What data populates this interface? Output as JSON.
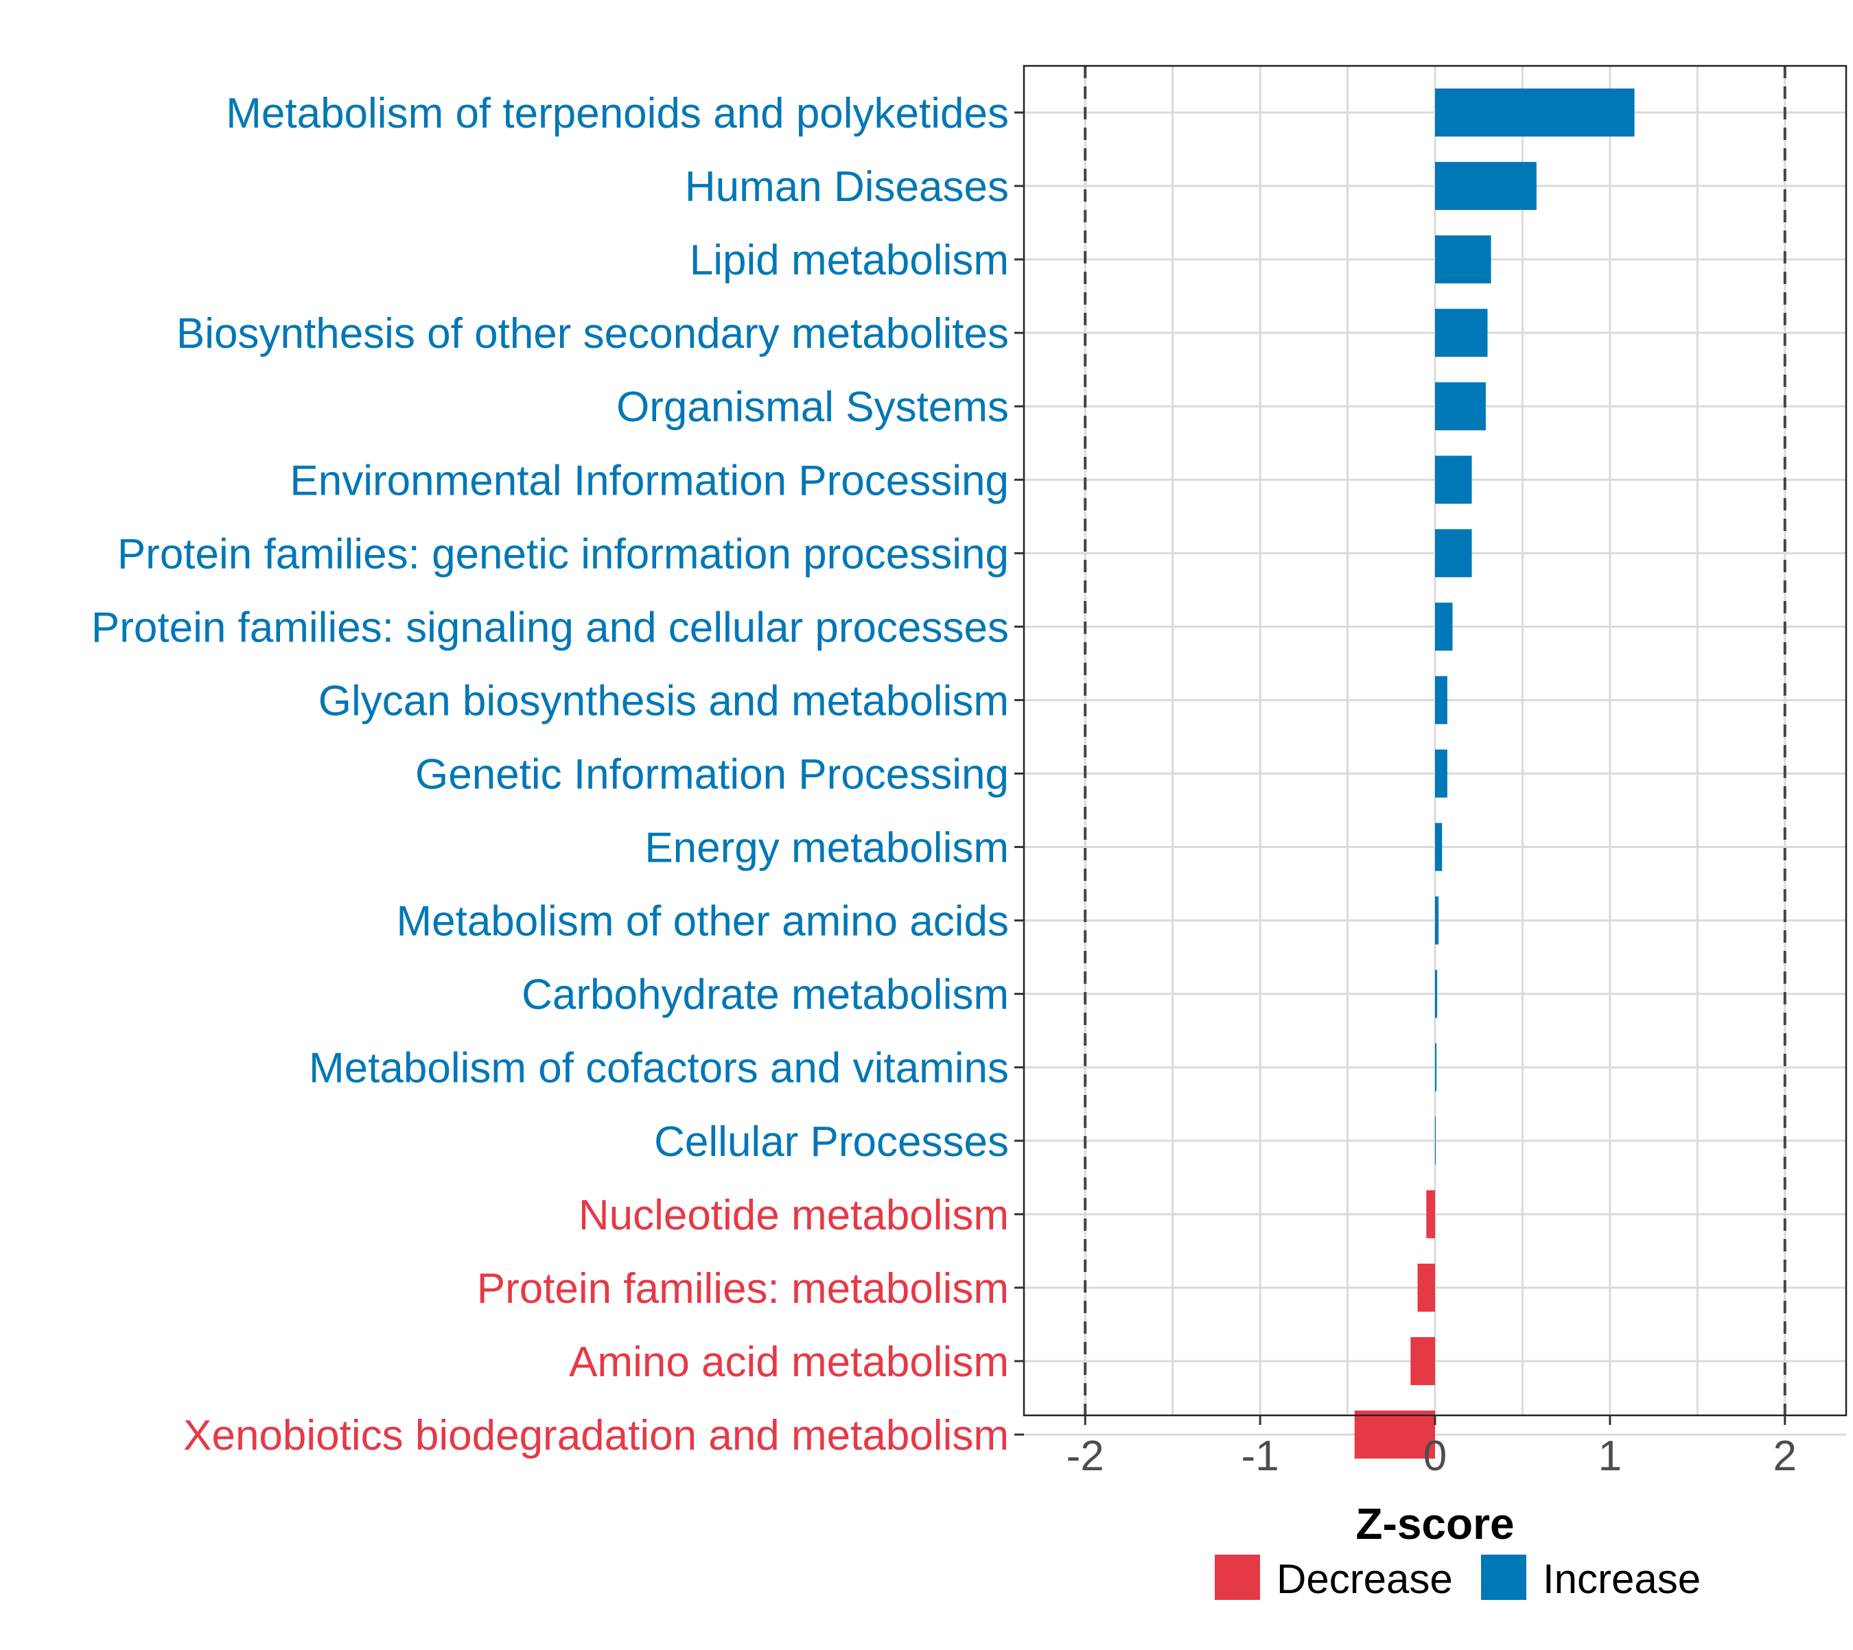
{
  "chart_data": {
    "type": "bar",
    "orientation": "horizontal",
    "xlabel": "Z-score",
    "ylabel": "",
    "xlim": [
      -2.35,
      2.35
    ],
    "xticks": [
      -2,
      -1,
      0,
      1,
      2
    ],
    "xtick_labels": [
      "-2",
      "-1",
      "0",
      "1",
      "2"
    ],
    "reference_lines": [
      -2,
      2
    ],
    "grid": true,
    "legend_position": "bottom",
    "colors": {
      "Decrease": "#E63946",
      "Increase": "#0077B6"
    },
    "series": [
      {
        "name": "Decrease"
      },
      {
        "name": "Increase"
      }
    ],
    "categories": [
      "Metabolism of terpenoids and polyketides",
      "Human Diseases",
      "Lipid metabolism",
      "Biosynthesis of other secondary metabolites",
      "Organismal Systems",
      "Environmental Information Processing",
      "Protein families: genetic information processing",
      "Protein families: signaling and cellular processes",
      "Glycan biosynthesis and metabolism",
      "Genetic Information Processing",
      "Energy metabolism",
      "Metabolism of other amino acids",
      "Carbohydrate metabolism",
      "Metabolism of cofactors and vitamins",
      "Cellular Processes",
      "Nucleotide metabolism",
      "Protein families: metabolism",
      "Amino acid metabolism",
      "Xenobiotics biodegradation and metabolism"
    ],
    "values": [
      1.14,
      0.58,
      0.32,
      0.3,
      0.29,
      0.21,
      0.21,
      0.1,
      0.07,
      0.07,
      0.04,
      0.02,
      0.012,
      0.008,
      0.004,
      -0.05,
      -0.1,
      -0.14,
      -0.46
    ],
    "groups": [
      "Increase",
      "Increase",
      "Increase",
      "Increase",
      "Increase",
      "Increase",
      "Increase",
      "Increase",
      "Increase",
      "Increase",
      "Increase",
      "Increase",
      "Increase",
      "Increase",
      "Increase",
      "Decrease",
      "Decrease",
      "Decrease",
      "Decrease"
    ]
  }
}
